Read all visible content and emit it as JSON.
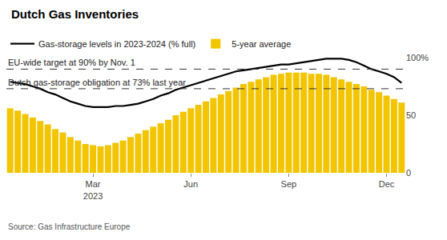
{
  "chart_data": {
    "type": "line",
    "title": "Dutch Gas Inventories",
    "source": "Source: Gas Infrastructure Europe",
    "categories": [
      null,
      null,
      null,
      null,
      null,
      null,
      null,
      null,
      null,
      null,
      null,
      "Mar\n2023",
      null,
      null,
      null,
      null,
      null,
      null,
      null,
      null,
      null,
      null,
      null,
      null,
      "Jun",
      null,
      null,
      null,
      null,
      null,
      null,
      null,
      null,
      null,
      null,
      null,
      null,
      "Sep",
      null,
      null,
      null,
      null,
      null,
      null,
      null,
      null,
      null,
      null,
      null,
      null,
      "Dec",
      null,
      null
    ],
    "series": [
      {
        "name": "5-year average",
        "type": "bar",
        "color": "#f2c500",
        "values": [
          56,
          54,
          51,
          48,
          45,
          42,
          38,
          35,
          31,
          28,
          25,
          24,
          23,
          24,
          26,
          28,
          31,
          34,
          37,
          40,
          43,
          46,
          50,
          53,
          56,
          59,
          62,
          65,
          68,
          71,
          74,
          77,
          79,
          81,
          83,
          85,
          86,
          87,
          87,
          87,
          86,
          86,
          85,
          83,
          81,
          79,
          77,
          75,
          72,
          70,
          67,
          64,
          61
        ]
      },
      {
        "name": "Gas-storage levels in 2023-2024 (% full)",
        "type": "line",
        "color": "#000000",
        "values": [
          79,
          78,
          77,
          75,
          73,
          70,
          68,
          65,
          62,
          60,
          58,
          57,
          57,
          57,
          58,
          58,
          59,
          60,
          62,
          64,
          67,
          69,
          72,
          74,
          76,
          78,
          80,
          82,
          84,
          86,
          88,
          89,
          90,
          91,
          92,
          93,
          94,
          94,
          95,
          96,
          97,
          98,
          99,
          99,
          99,
          98,
          96,
          93,
          90,
          88,
          86,
          83,
          78
        ]
      }
    ],
    "ylim": [
      0,
      100
    ],
    "yticks": [
      0,
      50,
      {
        "value": 100,
        "label": "100%"
      }
    ],
    "grid": false,
    "legend": "top",
    "annotations": [
      {
        "y": 90,
        "text": "EU-wide target at 90% by Nov. 1",
        "line_style": "dashed"
      },
      {
        "y": 73,
        "text": "Dutch gas-storage obligation at 73% last year",
        "line_style": "dashed"
      }
    ]
  }
}
